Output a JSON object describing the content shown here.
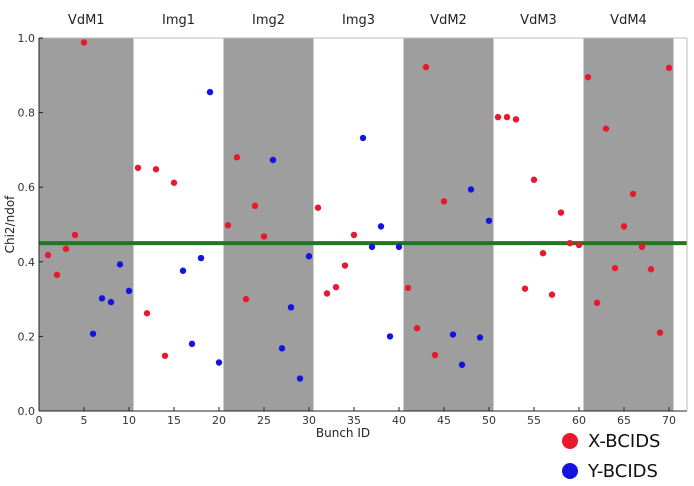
{
  "chart_data": {
    "type": "scatter",
    "xlabel": "Bunch ID",
    "ylabel": "Chi2/ndof",
    "xlim": [
      0,
      71
    ],
    "ylim": [
      0,
      1.0
    ],
    "xticks": [
      0,
      5,
      10,
      15,
      20,
      25,
      30,
      35,
      40,
      45,
      50,
      55,
      60,
      65,
      70
    ],
    "yticks": [
      0.0,
      0.2,
      0.4,
      0.6,
      0.8,
      1.0
    ],
    "ytick_labels": [
      "0.0",
      "0.2",
      "0.4",
      "0.6",
      "0.8",
      "1.0"
    ],
    "reference_line": {
      "y": 0.45,
      "color": "#1f7a1f"
    },
    "grid": false,
    "bands": [
      {
        "label": "VdM1",
        "x0": 0,
        "x1": 10.5,
        "shaded": true
      },
      {
        "label": "Img1",
        "x0": 10.5,
        "x1": 20.5,
        "shaded": false
      },
      {
        "label": "Img2",
        "x0": 20.5,
        "x1": 30.5,
        "shaded": true
      },
      {
        "label": "Img3",
        "x0": 30.5,
        "x1": 40.5,
        "shaded": false
      },
      {
        "label": "VdM2",
        "x0": 40.5,
        "x1": 50.5,
        "shaded": true
      },
      {
        "label": "VdM3",
        "x0": 50.5,
        "x1": 60.5,
        "shaded": false
      },
      {
        "label": "VdM4",
        "x0": 60.5,
        "x1": 70.5,
        "shaded": true
      }
    ],
    "band_color": "#9e9e9e",
    "legend_position": "bottom-right",
    "series": [
      {
        "name": "X-BCIDS",
        "color": "#e8192c",
        "points": [
          [
            1,
            0.418
          ],
          [
            2,
            0.365
          ],
          [
            3,
            0.435
          ],
          [
            4,
            0.472
          ],
          [
            5,
            0.988
          ],
          [
            11,
            0.652
          ],
          [
            12,
            0.262
          ],
          [
            13,
            0.648
          ],
          [
            14,
            0.148
          ],
          [
            15,
            0.612
          ],
          [
            21,
            0.498
          ],
          [
            22,
            0.68
          ],
          [
            23,
            0.3
          ],
          [
            24,
            0.55
          ],
          [
            25,
            0.468
          ],
          [
            31,
            0.545
          ],
          [
            32,
            0.315
          ],
          [
            33,
            0.332
          ],
          [
            34,
            0.39
          ],
          [
            35,
            0.472
          ],
          [
            41,
            0.33
          ],
          [
            42,
            0.222
          ],
          [
            43,
            0.922
          ],
          [
            44,
            0.15
          ],
          [
            45,
            0.562
          ],
          [
            51,
            0.788
          ],
          [
            52,
            0.788
          ],
          [
            53,
            0.782
          ],
          [
            54,
            0.328
          ],
          [
            55,
            0.62
          ],
          [
            56,
            0.423
          ],
          [
            57,
            0.312
          ],
          [
            58,
            0.532
          ],
          [
            59,
            0.45
          ],
          [
            60,
            0.445
          ],
          [
            61,
            0.895
          ],
          [
            62,
            0.29
          ],
          [
            63,
            0.757
          ],
          [
            64,
            0.383
          ],
          [
            65,
            0.495
          ],
          [
            66,
            0.582
          ],
          [
            67,
            0.44
          ],
          [
            68,
            0.38
          ],
          [
            69,
            0.21
          ],
          [
            70,
            0.92
          ]
        ]
      },
      {
        "name": "Y-BCIDS",
        "color": "#1414e0",
        "points": [
          [
            6,
            0.207
          ],
          [
            7,
            0.302
          ],
          [
            8,
            0.292
          ],
          [
            9,
            0.393
          ],
          [
            10,
            0.322
          ],
          [
            16,
            0.376
          ],
          [
            17,
            0.18
          ],
          [
            18,
            0.41
          ],
          [
            19,
            0.855
          ],
          [
            20,
            0.13
          ],
          [
            26,
            0.673
          ],
          [
            27,
            0.168
          ],
          [
            28,
            0.278
          ],
          [
            29,
            0.087
          ],
          [
            30,
            0.415
          ],
          [
            36,
            0.732
          ],
          [
            37,
            0.44
          ],
          [
            38,
            0.495
          ],
          [
            39,
            0.2
          ],
          [
            40,
            0.44
          ],
          [
            46,
            0.205
          ],
          [
            47,
            0.124
          ],
          [
            48,
            0.594
          ],
          [
            49,
            0.197
          ],
          [
            50,
            0.51
          ]
        ]
      }
    ]
  },
  "legend": [
    {
      "label": "X-BCIDS",
      "color": "#e8192c"
    },
    {
      "label": "Y-BCIDS",
      "color": "#1414e0"
    }
  ]
}
